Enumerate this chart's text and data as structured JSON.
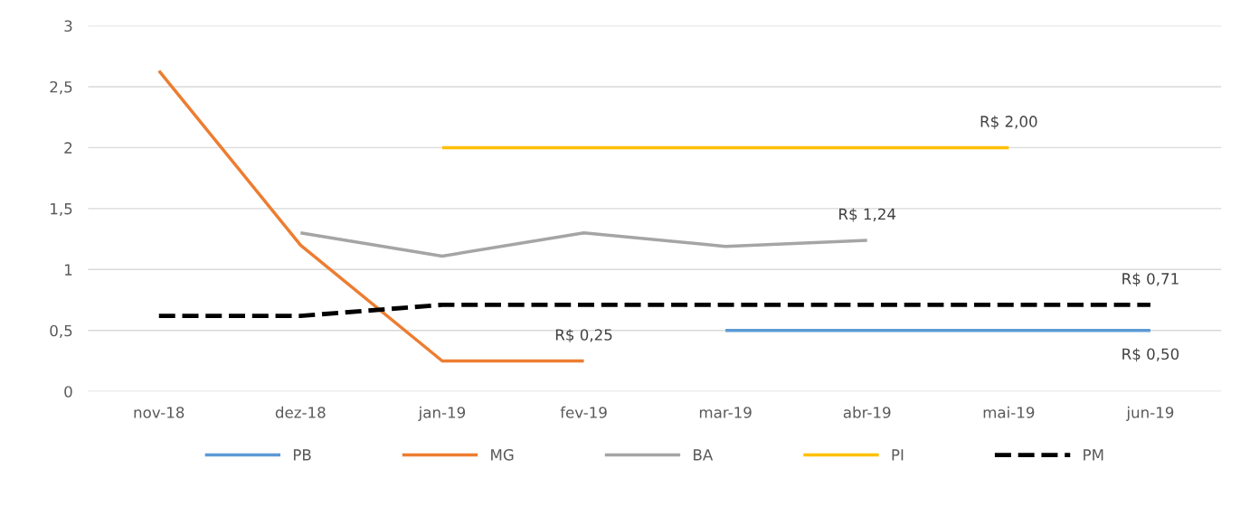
{
  "chart_data": {
    "type": "line",
    "categories": [
      "nov-18",
      "dez-18",
      "jan-19",
      "fev-19",
      "mar-19",
      "abr-19",
      "mai-19",
      "jun-19"
    ],
    "ylim": [
      0,
      3
    ],
    "yticks": [
      0,
      {
        "value": 0.5,
        "label": "0,5"
      },
      1,
      {
        "value": 1.5,
        "label": "1,5"
      },
      2,
      {
        "value": 2.5,
        "label": "2,5"
      },
      3
    ],
    "grid": "y",
    "legend": "bottom",
    "marker": "none",
    "series": [
      {
        "name": "PB",
        "color": "#5b9bd5",
        "values": [
          null,
          null,
          null,
          null,
          0.5,
          0.5,
          0.5,
          0.5
        ],
        "value_labels": [
          null,
          null,
          null,
          null,
          null,
          null,
          null,
          "R$ 0,50"
        ]
      },
      {
        "name": "MG",
        "color": "#ed7d31",
        "values": [
          2.63,
          1.2,
          0.25,
          0.25,
          null,
          null,
          null,
          null
        ],
        "value_labels": [
          null,
          null,
          null,
          "R$ 0,25",
          null,
          null,
          null,
          null
        ]
      },
      {
        "name": "BA",
        "color": "#a5a5a5",
        "values": [
          null,
          1.3,
          1.11,
          1.3,
          1.19,
          1.24,
          null,
          null
        ],
        "value_labels": [
          null,
          null,
          null,
          null,
          null,
          "R$ 1,24",
          null,
          null
        ]
      },
      {
        "name": "PI",
        "color": "#ffc000",
        "values": [
          null,
          null,
          2,
          2,
          2,
          2,
          2,
          null
        ],
        "value_labels": [
          null,
          null,
          null,
          null,
          null,
          null,
          "R$ 2,00",
          null
        ]
      },
      {
        "name": "PM",
        "color": "#000000",
        "line_style": "dashed",
        "values": [
          0.62,
          0.62,
          0.71,
          0.71,
          0.71,
          0.71,
          0.71,
          0.71
        ],
        "value_labels": [
          null,
          null,
          null,
          null,
          null,
          null,
          null,
          "R$ 0,71"
        ]
      }
    ]
  }
}
